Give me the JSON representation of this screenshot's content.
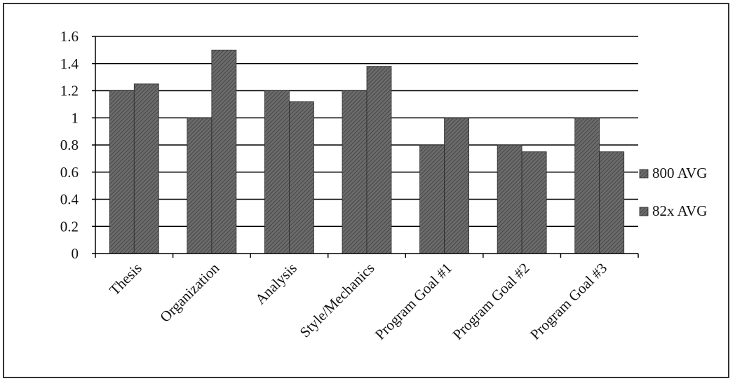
{
  "chart_data": {
    "type": "bar",
    "title": "",
    "xlabel": "",
    "ylabel": "",
    "categories": [
      "Thesis",
      "Organization",
      "Analysis",
      "Style/Mechanics",
      "Program Goal #1",
      "Program Goal #2",
      "Program Goal #3"
    ],
    "series": [
      {
        "name": "800 AVG",
        "values": [
          1.2,
          1.0,
          1.2,
          1.2,
          0.8,
          0.8,
          1.0
        ]
      },
      {
        "name": "82x AVG",
        "values": [
          1.25,
          1.5,
          1.12,
          1.38,
          1.0,
          0.75,
          0.75
        ]
      }
    ],
    "ylim": [
      0,
      1.6
    ],
    "yticks": [
      "0",
      "0.2",
      "0.4",
      "0.6",
      "0.8",
      "1",
      "1.2",
      "1.4",
      "1.6"
    ],
    "grid": true,
    "legend_position": "right",
    "colors": {
      "series_1": "#5a5a5a",
      "series_2": "#4a4a4a",
      "grid": "#000000",
      "axis": "#000000"
    }
  }
}
